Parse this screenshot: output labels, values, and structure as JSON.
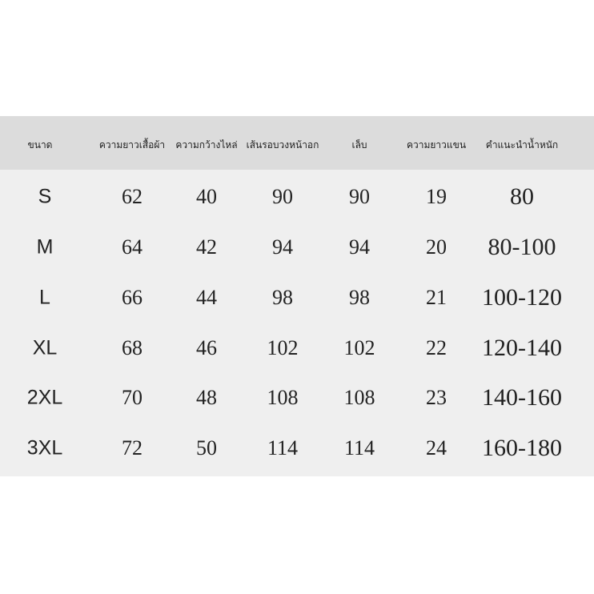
{
  "table": {
    "headers": [
      "ขนาด",
      "ความยาวเสื้อผ้า",
      "ความกว้างไหล่",
      "เส้นรอบวงหน้าอก",
      "เล็บ",
      "ความยาวแขน",
      "คำแนะนำน้ำหนัก"
    ],
    "rows": [
      [
        "S",
        "62",
        "40",
        "90",
        "90",
        "19",
        "80"
      ],
      [
        "M",
        "64",
        "42",
        "94",
        "94",
        "20",
        "80-100"
      ],
      [
        "L",
        "66",
        "44",
        "98",
        "98",
        "21",
        "100-120"
      ],
      [
        "XL",
        "68",
        "46",
        "102",
        "102",
        "22",
        "120-140"
      ],
      [
        "2XL",
        "70",
        "48",
        "108",
        "108",
        "23",
        "140-160"
      ],
      [
        "3XL",
        "72",
        "50",
        "114",
        "114",
        "24",
        "160-180"
      ]
    ]
  }
}
